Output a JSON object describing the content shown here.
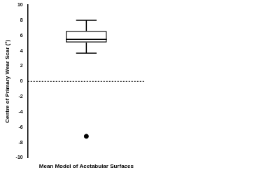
{
  "chart_data": {
    "type": "box",
    "y_label": "Centre of Primary Wear Scar (°)",
    "categories": [
      "Mean Model of Acetabular Surfaces"
    ],
    "whisker_low": [
      3.7
    ],
    "q1": [
      5.1
    ],
    "median": [
      5.5
    ],
    "q3": [
      6.6
    ],
    "whisker_high": [
      8.0
    ],
    "outliers": [
      [
        -7.2
      ]
    ],
    "reference_line": 0,
    "color": "#000000",
    "ylim": [
      -10,
      10
    ],
    "yticks": [
      -10,
      -8,
      -6,
      -4,
      -2,
      0,
      2,
      4,
      6,
      8,
      10
    ],
    "grid": false
  }
}
